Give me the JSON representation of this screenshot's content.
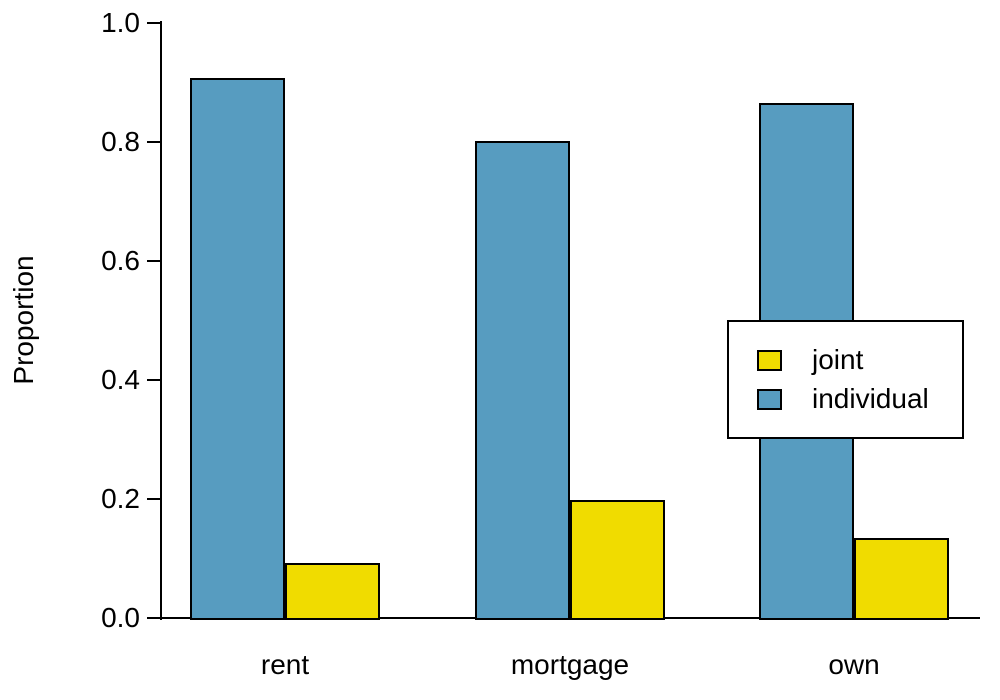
{
  "chart_data": {
    "type": "bar",
    "title": "",
    "xlabel": "",
    "ylabel": "Proportion",
    "categories": [
      "rent",
      "mortgage",
      "own"
    ],
    "series": [
      {
        "name": "joint",
        "color": "#F0DC00",
        "values": [
          0.093,
          0.198,
          0.135
        ]
      },
      {
        "name": "individual",
        "color": "#579CC0",
        "values": [
          0.907,
          0.802,
          0.865
        ]
      }
    ],
    "ylim": [
      0.0,
      1.0
    ],
    "yticks": [
      "0.0",
      "0.2",
      "0.4",
      "0.6",
      "0.8",
      "1.0"
    ],
    "grid": false,
    "legend_position": "middle-right",
    "legend_entries": [
      "joint",
      "individual"
    ],
    "bar_border_color": "#000000",
    "axis_color": "#000000",
    "background_color": "#FFFFFF"
  }
}
